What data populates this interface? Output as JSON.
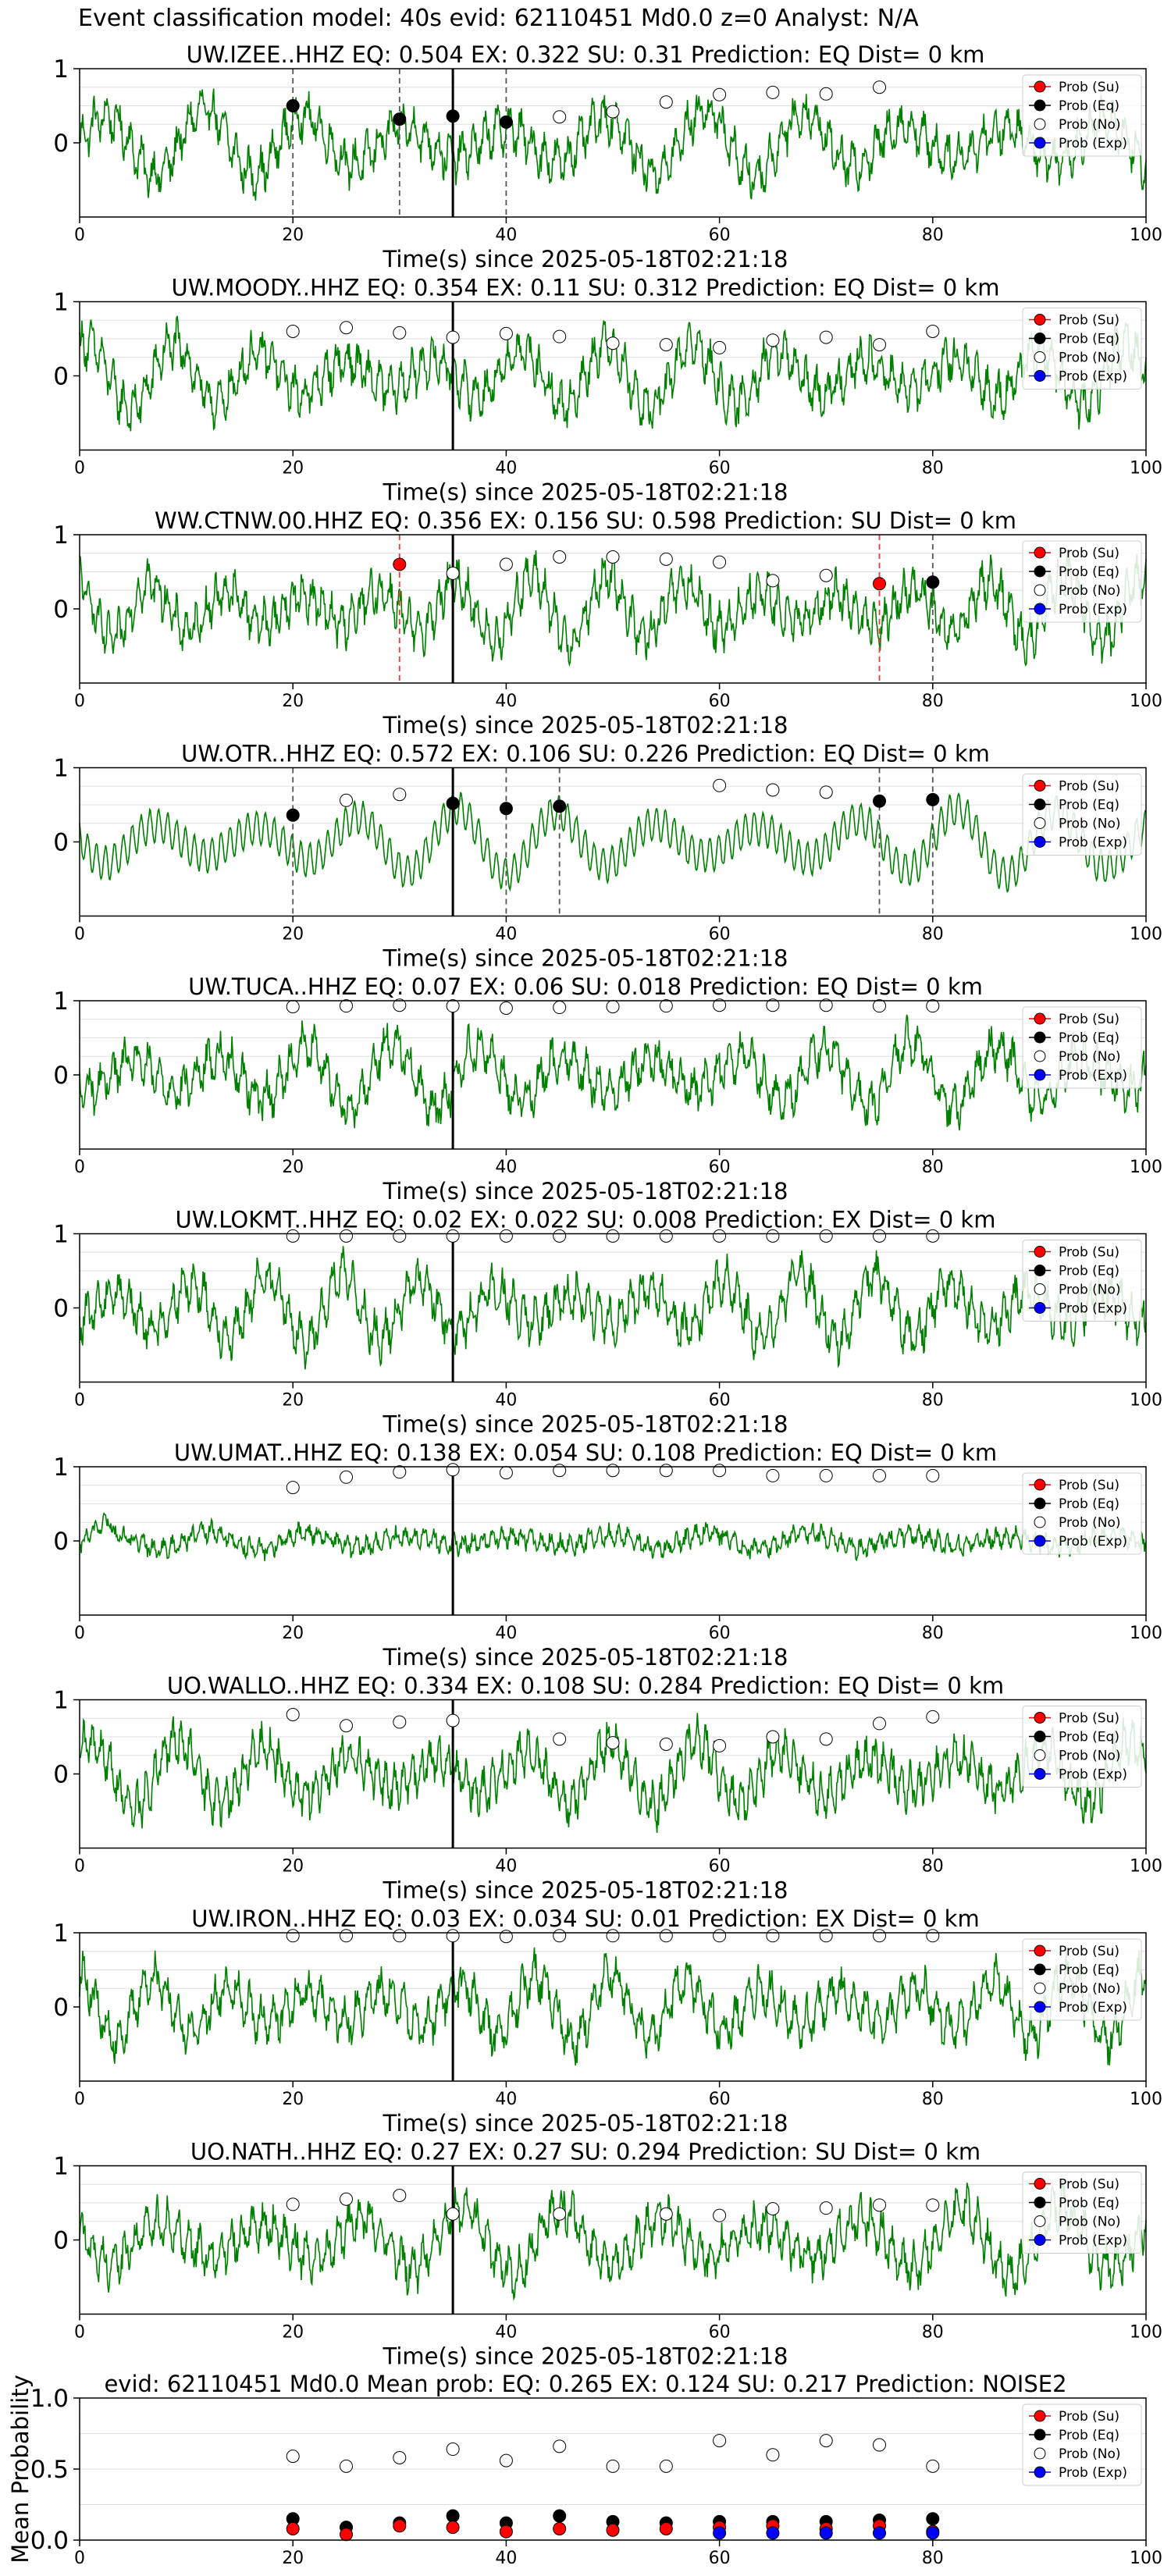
{
  "figure": {
    "suptitle": "Event classification model: 40s evid: 62110451 Md0.0 z=0 Analyst: N/A"
  },
  "legend_labels": [
    "Prob (Su)",
    "Prob (Eq)",
    "Prob (No)",
    "Prob (Exp)"
  ],
  "colors": {
    "waveform": "#008000",
    "su": "#ff0000",
    "eq": "#000000",
    "no": "#ffffff",
    "exp": "#0000ff",
    "su_marker_line": "#ff3333",
    "eq_marker_line": "#555555"
  },
  "chart_data": [
    {
      "type": "line",
      "title": "UW.IZEE..HHZ   EQ: 0.504  EX: 0.322  SU: 0.31   Prediction: EQ    Dist= 0 km",
      "xlabel": "Time(s) since 2025-05-18T02:21:18",
      "xlim": [
        0,
        100
      ],
      "ylim": [
        -1,
        1
      ],
      "xticks": [
        "0",
        "20",
        "40",
        "60",
        "80",
        "100"
      ],
      "yticks": [
        "1",
        "0"
      ],
      "event_line_x": 35,
      "eq_lines": [
        20,
        30,
        40
      ],
      "su_lines": [],
      "series": [
        {
          "name": "Prob (No)",
          "x": [
            45,
            50,
            55,
            60,
            65,
            70,
            75
          ],
          "values": [
            0.35,
            0.42,
            0.55,
            0.65,
            0.68,
            0.66,
            0.75
          ]
        },
        {
          "name": "Prob (Eq)",
          "x": [
            20,
            30,
            35,
            40
          ],
          "values": [
            0.5,
            0.32,
            0.36,
            0.28
          ]
        },
        {
          "name": "Prob (Su)",
          "x": [],
          "values": []
        },
        {
          "name": "Prob (Exp)",
          "x": [],
          "values": []
        }
      ]
    },
    {
      "type": "line",
      "title": "UW.MOODY..HHZ   EQ: 0.354  EX: 0.11  SU: 0.312   Prediction: EQ    Dist= 0 km",
      "xlabel": "Time(s) since 2025-05-18T02:21:18",
      "xlim": [
        0,
        100
      ],
      "ylim": [
        -1,
        1
      ],
      "xticks": [
        "0",
        "20",
        "40",
        "60",
        "80",
        "100"
      ],
      "yticks": [
        "1",
        "0"
      ],
      "event_line_x": 35,
      "eq_lines": [],
      "su_lines": [],
      "series": [
        {
          "name": "Prob (No)",
          "x": [
            20,
            25,
            30,
            35,
            40,
            45,
            50,
            55,
            60,
            65,
            70,
            75,
            80
          ],
          "values": [
            0.6,
            0.65,
            0.58,
            0.52,
            0.57,
            0.53,
            0.44,
            0.42,
            0.38,
            0.48,
            0.52,
            0.42,
            0.6
          ]
        },
        {
          "name": "Prob (Eq)",
          "x": [],
          "values": []
        },
        {
          "name": "Prob (Su)",
          "x": [],
          "values": []
        },
        {
          "name": "Prob (Exp)",
          "x": [],
          "values": []
        }
      ]
    },
    {
      "type": "line",
      "title": "WW.CTNW.00.HHZ   EQ: 0.356  EX: 0.156  SU: 0.598   Prediction: SU    Dist= 0 km",
      "xlabel": "Time(s) since 2025-05-18T02:21:18",
      "xlim": [
        0,
        100
      ],
      "ylim": [
        -1,
        1
      ],
      "xticks": [
        "0",
        "20",
        "40",
        "60",
        "80",
        "100"
      ],
      "yticks": [
        "1",
        "0"
      ],
      "event_line_x": 35,
      "eq_lines": [
        80
      ],
      "su_lines": [
        30,
        75
      ],
      "series": [
        {
          "name": "Prob (No)",
          "x": [
            35,
            40,
            45,
            50,
            55,
            60,
            65,
            70
          ],
          "values": [
            0.48,
            0.6,
            0.7,
            0.7,
            0.67,
            0.63,
            0.38,
            0.45
          ]
        },
        {
          "name": "Prob (Eq)",
          "x": [
            80
          ],
          "values": [
            0.36
          ]
        },
        {
          "name": "Prob (Su)",
          "x": [
            30,
            75
          ],
          "values": [
            0.6,
            0.34
          ]
        },
        {
          "name": "Prob (Exp)",
          "x": [],
          "values": []
        }
      ]
    },
    {
      "type": "line",
      "title": "UW.OTR..HHZ   EQ: 0.572  EX: 0.106  SU: 0.226   Prediction: EQ    Dist= 0 km",
      "xlabel": "Time(s) since 2025-05-18T02:21:18",
      "xlim": [
        0,
        100
      ],
      "ylim": [
        -1,
        1
      ],
      "xticks": [
        "0",
        "20",
        "40",
        "60",
        "80",
        "100"
      ],
      "yticks": [
        "1",
        "0"
      ],
      "event_line_x": 35,
      "eq_lines": [
        20,
        40,
        45,
        75,
        80
      ],
      "su_lines": [],
      "series": [
        {
          "name": "Prob (No)",
          "x": [
            25,
            30,
            60,
            65,
            70
          ],
          "values": [
            0.56,
            0.64,
            0.76,
            0.7,
            0.67
          ]
        },
        {
          "name": "Prob (Eq)",
          "x": [
            20,
            35,
            40,
            45,
            75,
            80
          ],
          "values": [
            0.36,
            0.52,
            0.45,
            0.48,
            0.55,
            0.57
          ]
        },
        {
          "name": "Prob (Su)",
          "x": [],
          "values": []
        },
        {
          "name": "Prob (Exp)",
          "x": [],
          "values": []
        }
      ]
    },
    {
      "type": "line",
      "title": "UW.TUCA..HHZ   EQ: 0.07  EX: 0.06  SU: 0.018   Prediction: EQ    Dist= 0 km",
      "xlabel": "Time(s) since 2025-05-18T02:21:18",
      "xlim": [
        0,
        100
      ],
      "ylim": [
        -1,
        1
      ],
      "xticks": [
        "0",
        "20",
        "40",
        "60",
        "80",
        "100"
      ],
      "yticks": [
        "1",
        "0"
      ],
      "event_line_x": 35,
      "eq_lines": [],
      "su_lines": [],
      "series": [
        {
          "name": "Prob (No)",
          "x": [
            20,
            25,
            30,
            35,
            40,
            45,
            50,
            55,
            60,
            65,
            70,
            75,
            80
          ],
          "values": [
            0.92,
            0.93,
            0.94,
            0.93,
            0.9,
            0.91,
            0.92,
            0.93,
            0.94,
            0.94,
            0.94,
            0.93,
            0.93
          ]
        },
        {
          "name": "Prob (Eq)",
          "x": [],
          "values": []
        },
        {
          "name": "Prob (Su)",
          "x": [],
          "values": []
        },
        {
          "name": "Prob (Exp)",
          "x": [],
          "values": []
        }
      ]
    },
    {
      "type": "line",
      "title": "UW.LOKMT..HHZ   EQ: 0.02  EX: 0.022  SU: 0.008   Prediction: EX    Dist= 0 km",
      "xlabel": "Time(s) since 2025-05-18T02:21:18",
      "xlim": [
        0,
        100
      ],
      "ylim": [
        -1,
        1
      ],
      "xticks": [
        "0",
        "20",
        "40",
        "60",
        "80",
        "100"
      ],
      "yticks": [
        "1",
        "0"
      ],
      "event_line_x": 35,
      "eq_lines": [],
      "su_lines": [],
      "series": [
        {
          "name": "Prob (No)",
          "x": [
            20,
            25,
            30,
            35,
            40,
            45,
            50,
            55,
            60,
            65,
            70,
            75,
            80
          ],
          "values": [
            0.97,
            0.97,
            0.97,
            0.97,
            0.97,
            0.97,
            0.97,
            0.97,
            0.97,
            0.97,
            0.97,
            0.97,
            0.97
          ]
        },
        {
          "name": "Prob (Eq)",
          "x": [],
          "values": []
        },
        {
          "name": "Prob (Su)",
          "x": [],
          "values": []
        },
        {
          "name": "Prob (Exp)",
          "x": [],
          "values": []
        }
      ]
    },
    {
      "type": "line",
      "title": "UW.UMAT..HHZ   EQ: 0.138  EX: 0.054  SU: 0.108   Prediction: EQ    Dist= 0 km",
      "xlabel": "Time(s) since 2025-05-18T02:21:18",
      "xlim": [
        0,
        100
      ],
      "ylim": [
        -1,
        1
      ],
      "xticks": [
        "0",
        "20",
        "40",
        "60",
        "80",
        "100"
      ],
      "yticks": [
        "1",
        "0"
      ],
      "event_line_x": 35,
      "eq_lines": [],
      "su_lines": [],
      "series": [
        {
          "name": "Prob (No)",
          "x": [
            20,
            25,
            30,
            35,
            40,
            45,
            50,
            55,
            60,
            65,
            70,
            75,
            80
          ],
          "values": [
            0.72,
            0.86,
            0.93,
            0.96,
            0.92,
            0.95,
            0.95,
            0.95,
            0.95,
            0.88,
            0.88,
            0.88,
            0.88
          ]
        },
        {
          "name": "Prob (Eq)",
          "x": [],
          "values": []
        },
        {
          "name": "Prob (Su)",
          "x": [],
          "values": []
        },
        {
          "name": "Prob (Exp)",
          "x": [],
          "values": []
        }
      ]
    },
    {
      "type": "line",
      "title": "UO.WALLO..HHZ   EQ: 0.334  EX: 0.108  SU: 0.284   Prediction: EQ    Dist= 0 km",
      "xlabel": "Time(s) since 2025-05-18T02:21:18",
      "xlim": [
        0,
        100
      ],
      "ylim": [
        -1,
        1
      ],
      "xticks": [
        "0",
        "20",
        "40",
        "60",
        "80",
        "100"
      ],
      "yticks": [
        "1",
        "0"
      ],
      "event_line_x": 35,
      "eq_lines": [],
      "su_lines": [],
      "series": [
        {
          "name": "Prob (No)",
          "x": [
            20,
            25,
            30,
            35,
            45,
            50,
            55,
            60,
            65,
            70,
            75,
            80
          ],
          "values": [
            0.8,
            0.65,
            0.7,
            0.72,
            0.47,
            0.42,
            0.4,
            0.38,
            0.5,
            0.47,
            0.68,
            0.77
          ]
        },
        {
          "name": "Prob (Eq)",
          "x": [],
          "values": []
        },
        {
          "name": "Prob (Su)",
          "x": [],
          "values": []
        },
        {
          "name": "Prob (Exp)",
          "x": [],
          "values": []
        }
      ]
    },
    {
      "type": "line",
      "title": "UW.IRON..HHZ   EQ: 0.03  EX: 0.034  SU: 0.01   Prediction: EX    Dist= 0 km",
      "xlabel": "Time(s) since 2025-05-18T02:21:18",
      "xlim": [
        0,
        100
      ],
      "ylim": [
        -1,
        1
      ],
      "xticks": [
        "0",
        "20",
        "40",
        "60",
        "80",
        "100"
      ],
      "yticks": [
        "1",
        "0"
      ],
      "event_line_x": 35,
      "eq_lines": [],
      "su_lines": [],
      "series": [
        {
          "name": "Prob (No)",
          "x": [
            20,
            25,
            30,
            35,
            40,
            45,
            50,
            55,
            60,
            65,
            70,
            75,
            80
          ],
          "values": [
            0.96,
            0.96,
            0.96,
            0.96,
            0.95,
            0.96,
            0.96,
            0.96,
            0.96,
            0.96,
            0.96,
            0.96,
            0.96
          ]
        },
        {
          "name": "Prob (Eq)",
          "x": [],
          "values": []
        },
        {
          "name": "Prob (Su)",
          "x": [],
          "values": []
        },
        {
          "name": "Prob (Exp)",
          "x": [],
          "values": []
        }
      ]
    },
    {
      "type": "line",
      "title": "UO.NATH..HHZ   EQ: 0.27  EX: 0.27  SU: 0.294   Prediction: SU    Dist= 0 km",
      "xlabel": "Time(s) since 2025-05-18T02:21:18",
      "xlim": [
        0,
        100
      ],
      "ylim": [
        -1,
        1
      ],
      "xticks": [
        "0",
        "20",
        "40",
        "60",
        "80",
        "100"
      ],
      "yticks": [
        "1",
        "0"
      ],
      "event_line_x": 35,
      "eq_lines": [],
      "su_lines": [],
      "series": [
        {
          "name": "Prob (No)",
          "x": [
            20,
            25,
            30,
            35,
            45,
            55,
            60,
            65,
            70,
            75,
            80
          ],
          "values": [
            0.48,
            0.55,
            0.6,
            0.35,
            0.35,
            0.35,
            0.33,
            0.42,
            0.43,
            0.47,
            0.47
          ]
        },
        {
          "name": "Prob (Eq)",
          "x": [],
          "values": []
        },
        {
          "name": "Prob (Su)",
          "x": [],
          "values": []
        },
        {
          "name": "Prob (Exp)",
          "x": [],
          "values": []
        }
      ]
    },
    {
      "type": "scatter",
      "title": "evid: 62110451  Md0.0   Mean prob:   EQ: 0.265  EX: 0.124  SU: 0.217   Prediction: NOISE2",
      "ylabel": "Mean Probability",
      "xlabel": "",
      "xlim": [
        0,
        100
      ],
      "ylim": [
        0,
        1
      ],
      "xticks": [
        "0",
        "20",
        "40",
        "60",
        "80",
        "100"
      ],
      "yticks": [
        "1.0",
        "0.5",
        "0.0"
      ],
      "series": [
        {
          "name": "Prob (No)",
          "x": [
            20,
            25,
            30,
            35,
            40,
            45,
            50,
            55,
            60,
            65,
            70,
            75,
            80
          ],
          "values": [
            0.59,
            0.52,
            0.58,
            0.64,
            0.56,
            0.66,
            0.52,
            0.52,
            0.7,
            0.6,
            0.7,
            0.67,
            0.52
          ]
        },
        {
          "name": "Prob (Eq)",
          "x": [
            20,
            25,
            30,
            35,
            40,
            45,
            50,
            55,
            60,
            65,
            70,
            75,
            80
          ],
          "values": [
            0.15,
            0.09,
            0.12,
            0.17,
            0.12,
            0.17,
            0.13,
            0.12,
            0.13,
            0.13,
            0.13,
            0.14,
            0.15
          ]
        },
        {
          "name": "Prob (Su)",
          "x": [
            20,
            25,
            30,
            35,
            40,
            45,
            50,
            55,
            60,
            65,
            70,
            75,
            80
          ],
          "values": [
            0.08,
            0.04,
            0.1,
            0.09,
            0.06,
            0.08,
            0.07,
            0.08,
            0.09,
            0.1,
            0.08,
            0.1,
            0.06
          ]
        },
        {
          "name": "Prob (Exp)",
          "x": [
            60,
            65,
            70,
            75,
            80
          ],
          "values": [
            0.05,
            0.05,
            0.05,
            0.05,
            0.05
          ]
        }
      ]
    }
  ]
}
